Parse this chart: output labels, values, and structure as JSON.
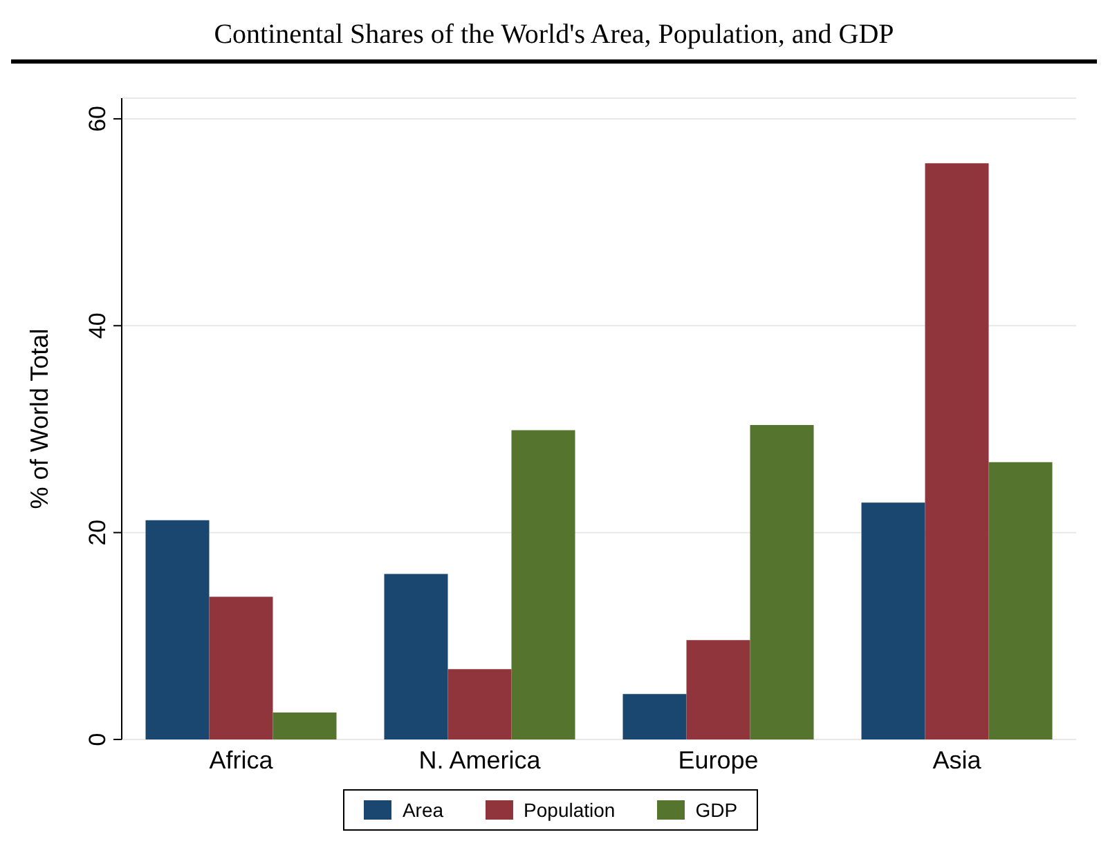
{
  "chart_data": {
    "type": "bar",
    "title": "Continental Shares of the World's Area, Population, and GDP",
    "ylabel": "% of World Total",
    "categories": [
      "Africa",
      "N. America",
      "Europe",
      "Asia"
    ],
    "series": [
      {
        "name": "Area",
        "color": "#1a476f",
        "values": [
          21.2,
          16.0,
          4.4,
          22.9
        ]
      },
      {
        "name": "Population",
        "color": "#90353b",
        "values": [
          13.8,
          6.8,
          9.6,
          55.7
        ]
      },
      {
        "name": "GDP",
        "color": "#55752f",
        "values": [
          2.6,
          29.9,
          30.4,
          26.8
        ]
      }
    ],
    "ylim": [
      0,
      62
    ],
    "yticks": [
      0,
      20,
      40,
      60
    ],
    "grid": "y",
    "legend": "bottom"
  }
}
